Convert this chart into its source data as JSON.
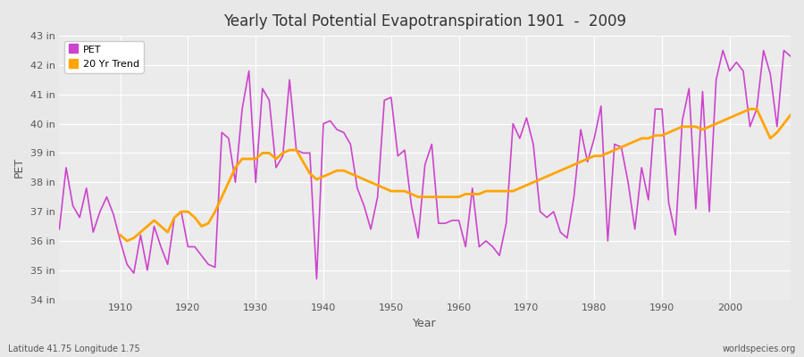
{
  "title": "Yearly Total Potential Evapotranspiration 1901  -  2009",
  "xlabel": "Year",
  "ylabel": "PET",
  "subtitle_left": "Latitude 41.75 Longitude 1.75",
  "subtitle_right": "worldspecies.org",
  "bg_color": "#e8e8e8",
  "plot_bg_color": "#ebebeb",
  "grid_color": "#ffffff",
  "pet_color": "#cc44cc",
  "trend_color": "#ffa500",
  "ylim": [
    34,
    43
  ],
  "yticks": [
    34,
    35,
    36,
    37,
    38,
    39,
    40,
    41,
    42,
    43
  ],
  "ytick_labels": [
    "34 in",
    "35 in",
    "36 in",
    "37 in",
    "38 in",
    "39 in",
    "40 in",
    "41 in",
    "42 in",
    "43 in"
  ],
  "pet_data": [
    [
      1901,
      36.4
    ],
    [
      1902,
      38.5
    ],
    [
      1903,
      37.2
    ],
    [
      1904,
      36.8
    ],
    [
      1905,
      37.8
    ],
    [
      1906,
      36.3
    ],
    [
      1907,
      37.0
    ],
    [
      1908,
      37.5
    ],
    [
      1909,
      36.9
    ],
    [
      1910,
      36.0
    ],
    [
      1911,
      35.2
    ],
    [
      1912,
      34.9
    ],
    [
      1913,
      36.2
    ],
    [
      1914,
      35.0
    ],
    [
      1915,
      36.5
    ],
    [
      1916,
      35.8
    ],
    [
      1917,
      35.2
    ],
    [
      1918,
      36.8
    ],
    [
      1919,
      37.0
    ],
    [
      1920,
      35.8
    ],
    [
      1921,
      35.8
    ],
    [
      1922,
      35.5
    ],
    [
      1923,
      35.2
    ],
    [
      1924,
      35.1
    ],
    [
      1925,
      39.7
    ],
    [
      1926,
      39.5
    ],
    [
      1927,
      38.0
    ],
    [
      1928,
      40.5
    ],
    [
      1929,
      41.8
    ],
    [
      1930,
      38.0
    ],
    [
      1931,
      41.2
    ],
    [
      1932,
      40.8
    ],
    [
      1933,
      38.5
    ],
    [
      1934,
      38.9
    ],
    [
      1935,
      41.5
    ],
    [
      1936,
      39.1
    ],
    [
      1937,
      39.0
    ],
    [
      1938,
      39.0
    ],
    [
      1939,
      34.7
    ],
    [
      1940,
      40.0
    ],
    [
      1941,
      40.1
    ],
    [
      1942,
      39.8
    ],
    [
      1943,
      39.7
    ],
    [
      1944,
      39.3
    ],
    [
      1945,
      37.8
    ],
    [
      1946,
      37.2
    ],
    [
      1947,
      36.4
    ],
    [
      1948,
      37.5
    ],
    [
      1949,
      40.8
    ],
    [
      1950,
      40.9
    ],
    [
      1951,
      38.9
    ],
    [
      1952,
      39.1
    ],
    [
      1953,
      37.2
    ],
    [
      1954,
      36.1
    ],
    [
      1955,
      38.6
    ],
    [
      1956,
      39.3
    ],
    [
      1957,
      36.6
    ],
    [
      1958,
      36.6
    ],
    [
      1959,
      36.7
    ],
    [
      1960,
      36.7
    ],
    [
      1961,
      35.8
    ],
    [
      1962,
      37.8
    ],
    [
      1963,
      35.8
    ],
    [
      1964,
      36.0
    ],
    [
      1965,
      35.8
    ],
    [
      1966,
      35.5
    ],
    [
      1967,
      36.6
    ],
    [
      1968,
      40.0
    ],
    [
      1969,
      39.5
    ],
    [
      1970,
      40.2
    ],
    [
      1971,
      39.3
    ],
    [
      1972,
      37.0
    ],
    [
      1973,
      36.8
    ],
    [
      1974,
      37.0
    ],
    [
      1975,
      36.3
    ],
    [
      1976,
      36.1
    ],
    [
      1977,
      37.5
    ],
    [
      1978,
      39.8
    ],
    [
      1979,
      38.7
    ],
    [
      1980,
      39.5
    ],
    [
      1981,
      40.6
    ],
    [
      1982,
      36.0
    ],
    [
      1983,
      39.3
    ],
    [
      1984,
      39.2
    ],
    [
      1985,
      38.0
    ],
    [
      1986,
      36.4
    ],
    [
      1987,
      38.5
    ],
    [
      1988,
      37.4
    ],
    [
      1989,
      40.5
    ],
    [
      1990,
      40.5
    ],
    [
      1991,
      37.3
    ],
    [
      1992,
      36.2
    ],
    [
      1993,
      40.1
    ],
    [
      1994,
      41.2
    ],
    [
      1995,
      37.1
    ],
    [
      1996,
      41.1
    ],
    [
      1997,
      37.0
    ],
    [
      1998,
      41.5
    ],
    [
      1999,
      42.5
    ],
    [
      2000,
      41.8
    ],
    [
      2001,
      42.1
    ],
    [
      2002,
      41.8
    ],
    [
      2003,
      39.9
    ],
    [
      2004,
      40.5
    ],
    [
      2005,
      42.5
    ],
    [
      2006,
      41.7
    ],
    [
      2007,
      39.9
    ],
    [
      2008,
      42.5
    ],
    [
      2009,
      42.3
    ]
  ],
  "trend_data": [
    [
      1910,
      36.2
    ],
    [
      1911,
      36.0
    ],
    [
      1912,
      36.1
    ],
    [
      1913,
      36.3
    ],
    [
      1914,
      36.5
    ],
    [
      1915,
      36.7
    ],
    [
      1916,
      36.5
    ],
    [
      1917,
      36.3
    ],
    [
      1918,
      36.8
    ],
    [
      1919,
      37.0
    ],
    [
      1920,
      37.0
    ],
    [
      1921,
      36.8
    ],
    [
      1922,
      36.5
    ],
    [
      1923,
      36.6
    ],
    [
      1924,
      37.0
    ],
    [
      1925,
      37.5
    ],
    [
      1926,
      38.0
    ],
    [
      1927,
      38.5
    ],
    [
      1928,
      38.8
    ],
    [
      1929,
      38.8
    ],
    [
      1930,
      38.8
    ],
    [
      1931,
      39.0
    ],
    [
      1932,
      39.0
    ],
    [
      1933,
      38.8
    ],
    [
      1934,
      39.0
    ],
    [
      1935,
      39.1
    ],
    [
      1936,
      39.1
    ],
    [
      1937,
      38.7
    ],
    [
      1938,
      38.3
    ],
    [
      1939,
      38.1
    ],
    [
      1940,
      38.2
    ],
    [
      1941,
      38.3
    ],
    [
      1942,
      38.4
    ],
    [
      1943,
      38.4
    ],
    [
      1944,
      38.3
    ],
    [
      1945,
      38.2
    ],
    [
      1946,
      38.1
    ],
    [
      1947,
      38.0
    ],
    [
      1948,
      37.9
    ],
    [
      1949,
      37.8
    ],
    [
      1950,
      37.7
    ],
    [
      1951,
      37.7
    ],
    [
      1952,
      37.7
    ],
    [
      1953,
      37.6
    ],
    [
      1954,
      37.5
    ],
    [
      1955,
      37.5
    ],
    [
      1956,
      37.5
    ],
    [
      1957,
      37.5
    ],
    [
      1958,
      37.5
    ],
    [
      1959,
      37.5
    ],
    [
      1960,
      37.5
    ],
    [
      1961,
      37.6
    ],
    [
      1962,
      37.6
    ],
    [
      1963,
      37.6
    ],
    [
      1964,
      37.7
    ],
    [
      1965,
      37.7
    ],
    [
      1966,
      37.7
    ],
    [
      1967,
      37.7
    ],
    [
      1968,
      37.7
    ],
    [
      1969,
      37.8
    ],
    [
      1970,
      37.9
    ],
    [
      1971,
      38.0
    ],
    [
      1972,
      38.1
    ],
    [
      1973,
      38.2
    ],
    [
      1974,
      38.3
    ],
    [
      1975,
      38.4
    ],
    [
      1976,
      38.5
    ],
    [
      1977,
      38.6
    ],
    [
      1978,
      38.7
    ],
    [
      1979,
      38.8
    ],
    [
      1980,
      38.9
    ],
    [
      1981,
      38.9
    ],
    [
      1982,
      39.0
    ],
    [
      1983,
      39.1
    ],
    [
      1984,
      39.2
    ],
    [
      1985,
      39.3
    ],
    [
      1986,
      39.4
    ],
    [
      1987,
      39.5
    ],
    [
      1988,
      39.5
    ],
    [
      1989,
      39.6
    ],
    [
      1990,
      39.6
    ],
    [
      1991,
      39.7
    ],
    [
      1992,
      39.8
    ],
    [
      1993,
      39.9
    ],
    [
      1994,
      39.9
    ],
    [
      1995,
      39.9
    ],
    [
      1996,
      39.8
    ],
    [
      1997,
      39.9
    ],
    [
      1998,
      40.0
    ],
    [
      1999,
      40.1
    ],
    [
      2000,
      40.2
    ],
    [
      2001,
      40.3
    ],
    [
      2002,
      40.4
    ],
    [
      2003,
      40.5
    ],
    [
      2004,
      40.5
    ],
    [
      2005,
      40.0
    ],
    [
      2006,
      39.5
    ],
    [
      2007,
      39.7
    ],
    [
      2008,
      40.0
    ],
    [
      2009,
      40.3
    ]
  ],
  "xtick_positions": [
    1910,
    1920,
    1930,
    1940,
    1950,
    1960,
    1970,
    1980,
    1990,
    2000
  ]
}
